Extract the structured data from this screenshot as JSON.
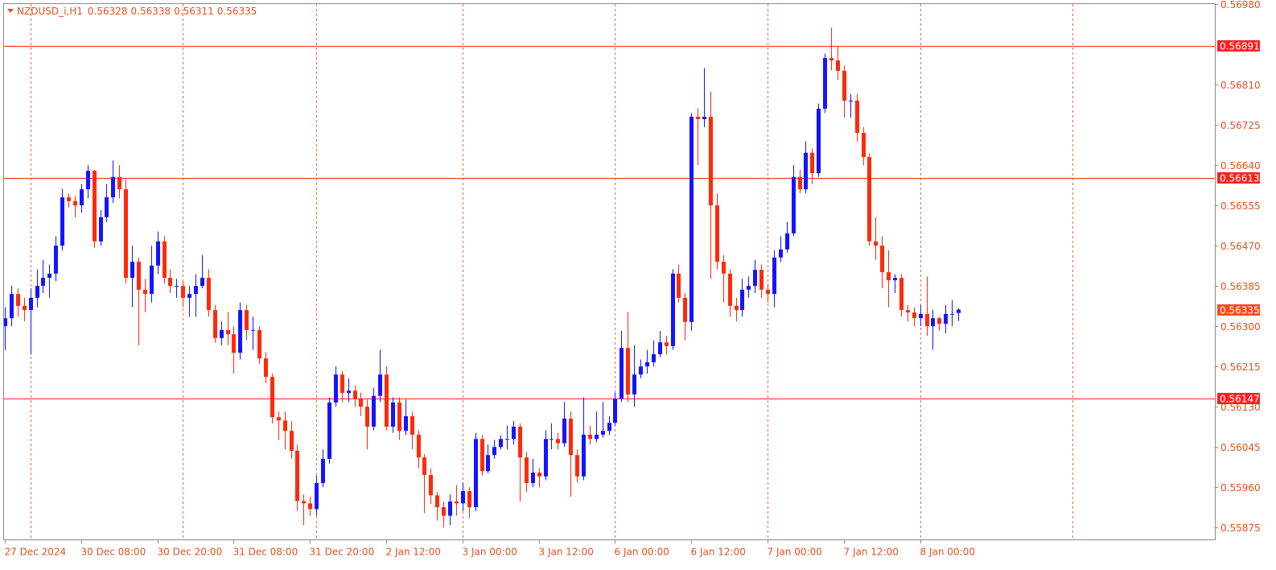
{
  "chart_data": {
    "type": "candlestick",
    "symbol": "NZDUSD_i,H1",
    "up_color": "#1414ff",
    "down_color": "#ff2a0a",
    "grid": true,
    "grid_color": "#f06a3a",
    "level_color": "#ff2020",
    "levels": [
      0.56891,
      0.56613,
      0.56147
    ],
    "ylim": [
      0.5585,
      0.5698
    ],
    "yticks": [
      {
        "value": 0.5698,
        "label": "0.56980"
      },
      {
        "value": 0.5681,
        "label": "0.56810"
      },
      0.56725,
      {
        "value": 0.5664,
        "label": "0.56640"
      },
      0.56555,
      {
        "value": 0.5647,
        "label": "0.56470"
      },
      0.56385,
      {
        "value": 0.563,
        "label": "0.56300"
      },
      0.56215,
      {
        "value": 0.5613,
        "label": "0.56130"
      },
      0.56045,
      {
        "value": 0.5596,
        "label": "0.55960"
      },
      0.55875
    ],
    "categories": [
      "27 Dec 2024",
      null,
      null,
      null,
      null,
      null,
      null,
      null,
      null,
      null,
      null,
      null,
      "30 Dec 08:00",
      null,
      null,
      null,
      null,
      null,
      null,
      null,
      null,
      null,
      null,
      null,
      "30 Dec 20:00",
      null,
      null,
      null,
      null,
      null,
      null,
      null,
      null,
      null,
      null,
      null,
      "31 Dec 08:00",
      null,
      null,
      null,
      null,
      null,
      null,
      null,
      null,
      null,
      null,
      null,
      "31 Dec 20:00",
      null,
      null,
      null,
      null,
      null,
      null,
      null,
      null,
      null,
      null,
      null,
      "2 Jan 12:00",
      null,
      null,
      null,
      null,
      null,
      null,
      null,
      null,
      null,
      null,
      null,
      "3 Jan 00:00",
      null,
      null,
      null,
      null,
      null,
      null,
      null,
      null,
      null,
      null,
      null,
      "3 Jan 12:00",
      null,
      null,
      null,
      null,
      null,
      null,
      null,
      null,
      null,
      null,
      null,
      "6 Jan 00:00",
      null,
      null,
      null,
      null,
      null,
      null,
      null,
      null,
      null,
      null,
      null,
      "6 Jan 12:00",
      null,
      null,
      null,
      null,
      null,
      null,
      null,
      null,
      null,
      null,
      null,
      "7 Jan 00:00",
      null,
      null,
      null,
      null,
      null,
      null,
      null,
      null,
      null,
      null,
      null,
      "7 Jan 12:00",
      null,
      null,
      null,
      null,
      null,
      null,
      null,
      null,
      null,
      null,
      null,
      "8 Jan 00:00",
      null,
      null,
      null,
      null,
      null,
      null
    ],
    "open": [
      0.563,
      0.56317,
      0.56368,
      0.56343,
      0.56334,
      0.5636,
      0.56385,
      0.56402,
      0.56411,
      0.5647,
      0.56572,
      0.56564,
      0.56555,
      0.56589,
      0.56628,
      0.56479,
      0.5653,
      0.56572,
      0.56615,
      0.56589,
      0.56402,
      0.56436,
      0.56377,
      0.56368,
      0.56428,
      0.56479,
      0.56402,
      0.56385,
      0.56385,
      0.5636,
      0.56368,
      0.56385,
      0.56402,
      0.56334,
      0.56275,
      0.56292,
      0.56283,
      0.56244,
      0.56334,
      0.56292,
      0.56292,
      0.56232,
      0.56193,
      0.56108,
      0.56101,
      0.56079,
      0.56037,
      0.55931,
      0.55926,
      0.55914,
      0.55969,
      0.5602,
      0.56139,
      0.56198,
      0.56159,
      0.56164,
      0.56147,
      0.5613,
      0.56088,
      0.56153,
      0.56198,
      0.56088,
      0.56139,
      0.56079,
      0.5611,
      0.56071,
      0.56023,
      0.55986,
      0.55943,
      0.55918,
      0.559,
      0.5593,
      0.55926,
      0.55952,
      0.55918,
      0.56062,
      0.55994,
      0.56028,
      0.56045,
      0.56062,
      0.56062,
      0.56088,
      0.56023,
      0.55969,
      0.55991,
      0.55983,
      0.56062,
      0.56062,
      0.56053,
      0.56105,
      0.56028,
      0.55983,
      0.56071,
      0.56062,
      0.56071,
      0.56079,
      0.56096,
      0.56147,
      0.56254,
      0.56156,
      0.56198,
      0.56215,
      0.56224,
      0.56241,
      0.56266,
      0.56258,
      0.56411,
      0.5636,
      0.56309,
      0.56742,
      0.56737,
      0.56742,
      0.56555,
      0.56436,
      0.56411,
      0.56343,
      0.56334,
      0.56377,
      0.56385,
      0.56419,
      0.56377,
      0.56368,
      0.56445,
      0.56462,
      0.56496,
      0.56615,
      0.56589,
      0.56666,
      0.56623,
      0.56759,
      0.56866,
      0.56861,
      0.56839,
      0.56776,
      0.56776,
      0.56708,
      0.56657,
      0.56479,
      0.5647,
      0.56414,
      0.56397,
      0.56402,
      0.56334,
      0.56329,
      0.56317,
      0.56326,
      0.563,
      0.56317,
      0.56305,
      0.56326,
      0.56328
    ],
    "high": [
      0.5634,
      0.56385,
      0.5638,
      0.5636,
      0.5638,
      0.5642,
      0.5644,
      0.5643,
      0.5649,
      0.5659,
      0.5658,
      0.56575,
      0.566,
      0.5664,
      0.5663,
      0.56545,
      0.566,
      0.5665,
      0.5664,
      0.5661,
      0.5647,
      0.56445,
      0.564,
      0.5647,
      0.565,
      0.5649,
      0.5642,
      0.564,
      0.56395,
      0.56385,
      0.5641,
      0.5645,
      0.5642,
      0.56345,
      0.5631,
      0.5633,
      0.563,
      0.5635,
      0.56345,
      0.5632,
      0.563,
      0.56245,
      0.562,
      0.5612,
      0.5612,
      0.561,
      0.5605,
      0.55945,
      0.5594,
      0.55985,
      0.5604,
      0.5615,
      0.56215,
      0.56205,
      0.5619,
      0.56175,
      0.5616,
      0.56145,
      0.5617,
      0.5625,
      0.56215,
      0.5615,
      0.5615,
      0.56145,
      0.5612,
      0.5608,
      0.5603,
      0.56,
      0.5595,
      0.5593,
      0.55945,
      0.55965,
      0.5597,
      0.5596,
      0.56075,
      0.5607,
      0.5605,
      0.5606,
      0.5607,
      0.5609,
      0.561,
      0.56095,
      0.56035,
      0.5602,
      0.56,
      0.5608,
      0.56095,
      0.56075,
      0.5614,
      0.5612,
      0.5604,
      0.5615,
      0.5609,
      0.5612,
      0.5614,
      0.5611,
      0.5616,
      0.5629,
      0.5633,
      0.5626,
      0.5623,
      0.5625,
      0.5627,
      0.5629,
      0.5628,
      0.5642,
      0.5643,
      0.5637,
      0.5675,
      0.5676,
      0.56845,
      0.56795,
      0.5658,
      0.5645,
      0.5642,
      0.5636,
      0.564,
      0.56405,
      0.5644,
      0.5643,
      0.5639,
      0.5646,
      0.5649,
      0.5652,
      0.5664,
      0.5663,
      0.5669,
      0.56675,
      0.5677,
      0.56875,
      0.5693,
      0.5689,
      0.5685,
      0.5679,
      0.5679,
      0.5672,
      0.56665,
      0.5653,
      0.5649,
      0.5646,
      0.5641,
      0.5641,
      0.56345,
      0.5634,
      0.56345,
      0.56405,
      0.56335,
      0.5632,
      0.56345,
      0.56355,
      0.56338
    ],
    "low": [
      0.5625,
      0.563,
      0.5632,
      0.5631,
      0.5624,
      0.5634,
      0.5637,
      0.5636,
      0.56395,
      0.5646,
      0.5655,
      0.5653,
      0.5654,
      0.5657,
      0.56465,
      0.5647,
      0.5652,
      0.5656,
      0.5657,
      0.5639,
      0.5634,
      0.5626,
      0.5633,
      0.5635,
      0.5641,
      0.5639,
      0.5637,
      0.5636,
      0.5634,
      0.5632,
      0.5632,
      0.5638,
      0.5632,
      0.56265,
      0.5626,
      0.5626,
      0.562,
      0.5623,
      0.5627,
      0.5625,
      0.5622,
      0.5618,
      0.56095,
      0.5606,
      0.5604,
      0.5602,
      0.5591,
      0.5588,
      0.559,
      0.559,
      0.5596,
      0.5601,
      0.5613,
      0.5614,
      0.5614,
      0.5613,
      0.5611,
      0.5604,
      0.5608,
      0.5614,
      0.5608,
      0.56075,
      0.5606,
      0.5607,
      0.5604,
      0.56,
      0.55905,
      0.55925,
      0.5589,
      0.55875,
      0.5588,
      0.559,
      0.5591,
      0.55895,
      0.5591,
      0.55985,
      0.5599,
      0.5602,
      0.5604,
      0.5604,
      0.5605,
      0.5593,
      0.5595,
      0.5596,
      0.5596,
      0.55975,
      0.5604,
      0.5604,
      0.56045,
      0.5594,
      0.5597,
      0.55975,
      0.5605,
      0.56055,
      0.56065,
      0.5607,
      0.5609,
      0.5614,
      0.5614,
      0.5613,
      0.5619,
      0.562,
      0.56215,
      0.56235,
      0.5624,
      0.5625,
      0.5635,
      0.5627,
      0.5629,
      0.5664,
      0.5672,
      0.564,
      0.5642,
      0.5635,
      0.5632,
      0.5631,
      0.5632,
      0.5636,
      0.5637,
      0.5636,
      0.5635,
      0.5634,
      0.56435,
      0.56455,
      0.5649,
      0.5658,
      0.5658,
      0.566,
      0.56615,
      0.5675,
      0.5684,
      0.5682,
      0.5674,
      0.5674,
      0.5669,
      0.5664,
      0.5647,
      0.5644,
      0.5638,
      0.5634,
      0.5637,
      0.5632,
      0.5631,
      0.563,
      0.563,
      0.5628,
      0.5625,
      0.5629,
      0.56285,
      0.563,
      0.56311
    ],
    "close": [
      0.56317,
      0.56368,
      0.56343,
      0.56334,
      0.5636,
      0.56385,
      0.56402,
      0.56411,
      0.5647,
      0.56572,
      0.56564,
      0.56555,
      0.56589,
      0.56628,
      0.56479,
      0.5653,
      0.56572,
      0.56615,
      0.56589,
      0.56402,
      0.56436,
      0.56377,
      0.56368,
      0.56428,
      0.56479,
      0.56402,
      0.56385,
      0.56385,
      0.5636,
      0.56368,
      0.56385,
      0.56402,
      0.56334,
      0.56275,
      0.56292,
      0.56283,
      0.56244,
      0.56334,
      0.56292,
      0.56292,
      0.56232,
      0.56193,
      0.56108,
      0.56101,
      0.56079,
      0.56037,
      0.55931,
      0.55926,
      0.55914,
      0.55969,
      0.5602,
      0.56139,
      0.56198,
      0.56159,
      0.56164,
      0.56147,
      0.5613,
      0.56088,
      0.56153,
      0.56198,
      0.56088,
      0.56139,
      0.56079,
      0.5611,
      0.56071,
      0.56023,
      0.55986,
      0.55943,
      0.55918,
      0.559,
      0.5593,
      0.55926,
      0.55952,
      0.55918,
      0.56062,
      0.55994,
      0.56028,
      0.56045,
      0.56062,
      0.56062,
      0.56088,
      0.56023,
      0.55969,
      0.55991,
      0.55983,
      0.56062,
      0.56062,
      0.56053,
      0.56105,
      0.56028,
      0.55983,
      0.56071,
      0.56062,
      0.56071,
      0.56079,
      0.56096,
      0.56147,
      0.56254,
      0.56156,
      0.56198,
      0.56215,
      0.56224,
      0.56241,
      0.56266,
      0.56258,
      0.56411,
      0.5636,
      0.56309,
      0.56742,
      0.56737,
      0.56742,
      0.56555,
      0.56436,
      0.56411,
      0.56343,
      0.56334,
      0.56377,
      0.56385,
      0.56419,
      0.56377,
      0.56368,
      0.56445,
      0.56462,
      0.56496,
      0.56615,
      0.56589,
      0.56666,
      0.56623,
      0.56759,
      0.56866,
      0.56861,
      0.56839,
      0.56776,
      0.56776,
      0.56708,
      0.56657,
      0.56479,
      0.5647,
      0.56414,
      0.56397,
      0.56402,
      0.56334,
      0.56329,
      0.56317,
      0.56326,
      0.563,
      0.56317,
      0.56305,
      0.56326,
      0.56326,
      0.56335
    ]
  }
}
